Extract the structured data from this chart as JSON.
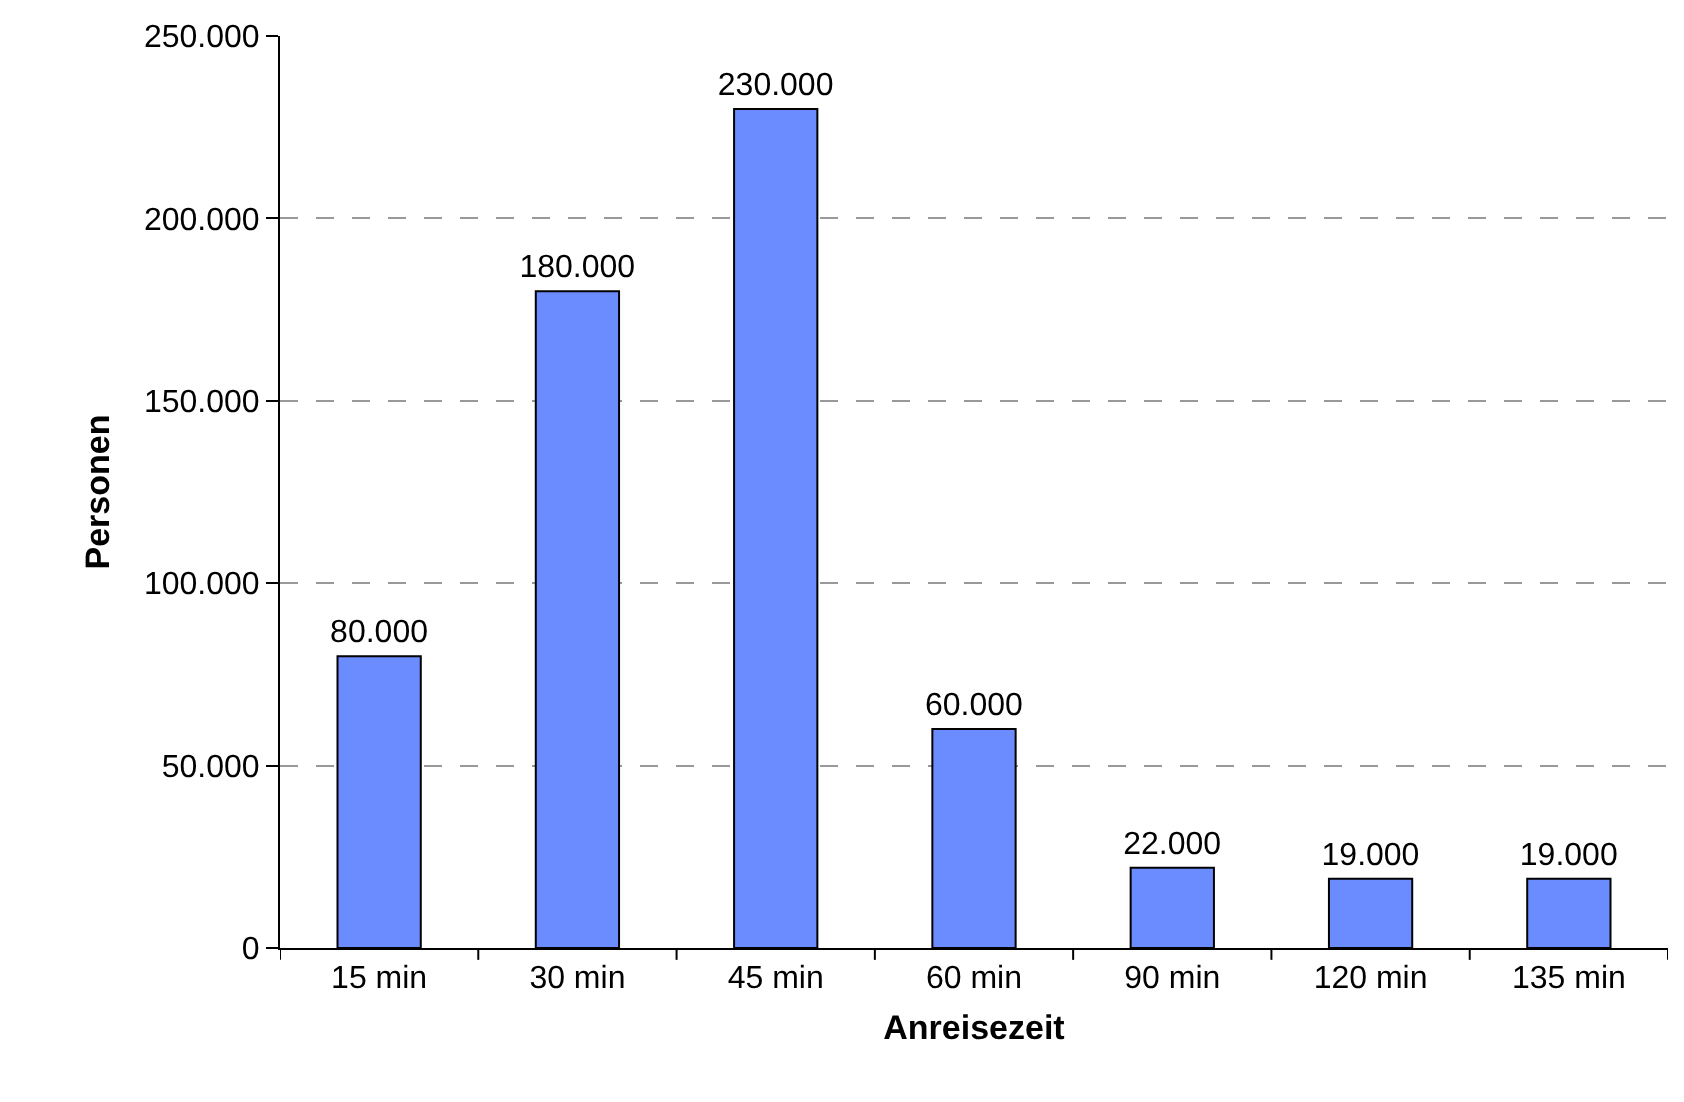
{
  "chart_data": {
    "type": "bar",
    "xlabel": "Anreisezeit",
    "ylabel": "Personen",
    "categories": [
      "15 min",
      "30 min",
      "45 min",
      "60 min",
      "90 min",
      "120 min",
      "135 min"
    ],
    "values": [
      80000,
      180000,
      230000,
      60000,
      22000,
      19000,
      19000
    ],
    "value_labels": [
      "80.000",
      "180.000",
      "230.000",
      "60.000",
      "22.000",
      "19.000",
      "19.000"
    ],
    "color": "#6a8cff",
    "ylim": [
      0,
      250000
    ],
    "yticks": [
      0,
      {
        "value": 50000,
        "label": "50.000"
      },
      {
        "value": 100000,
        "label": "100.000"
      },
      {
        "value": 150000,
        "label": "150.000"
      },
      {
        "value": 200000,
        "label": "200.000"
      },
      {
        "value": 250000,
        "label": "250.000"
      }
    ],
    "grid": "y"
  }
}
